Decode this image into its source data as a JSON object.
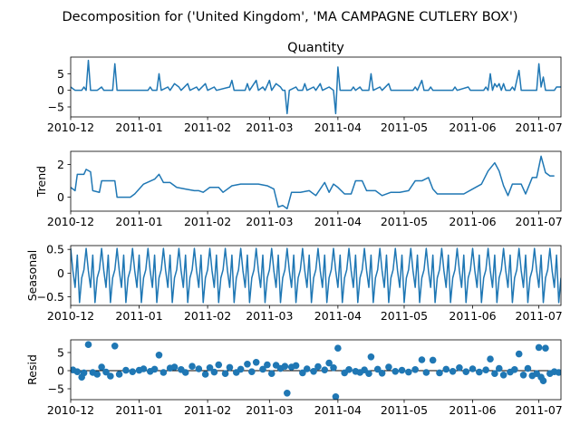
{
  "figure": {
    "suptitle": "Decomposition for ('United Kingdom', 'MA CAMPAGNE CUTLERY BOX')"
  },
  "colors": {
    "series": "#1f77b4",
    "zero_line": "#000000",
    "axes": "#000000"
  },
  "x_axis": {
    "start": "2010-12-01",
    "end": "2011-07-11",
    "ticks": [
      {
        "date": "2010-12-01",
        "label": "2010-12"
      },
      {
        "date": "2011-01-01",
        "label": "2011-01"
      },
      {
        "date": "2011-02-01",
        "label": "2011-02"
      },
      {
        "date": "2011-03-01",
        "label": "2011-03"
      },
      {
        "date": "2011-04-01",
        "label": "2011-04"
      },
      {
        "date": "2011-05-01",
        "label": "2011-05"
      },
      {
        "date": "2011-06-01",
        "label": "2011-06"
      },
      {
        "date": "2011-07-01",
        "label": "2011-07"
      }
    ]
  },
  "chart_data": [
    {
      "type": "line",
      "title": "Quantity",
      "ylabel": "",
      "ylim": [
        -8,
        10
      ],
      "yticks": [
        -5,
        0,
        5
      ],
      "points": [
        [
          "2010-12-01",
          1
        ],
        [
          "2010-12-03",
          0
        ],
        [
          "2010-12-06",
          0
        ],
        [
          "2010-12-07",
          1
        ],
        [
          "2010-12-08",
          0
        ],
        [
          "2010-12-09",
          9
        ],
        [
          "2010-12-10",
          0
        ],
        [
          "2010-12-13",
          0
        ],
        [
          "2010-12-15",
          1
        ],
        [
          "2010-12-16",
          0
        ],
        [
          "2010-12-20",
          0
        ],
        [
          "2010-12-21",
          8
        ],
        [
          "2010-12-22",
          0
        ],
        [
          "2011-01-05",
          0
        ],
        [
          "2011-01-06",
          1
        ],
        [
          "2011-01-07",
          0
        ],
        [
          "2011-01-09",
          0
        ],
        [
          "2011-01-10",
          5
        ],
        [
          "2011-01-11",
          0
        ],
        [
          "2011-01-14",
          1
        ],
        [
          "2011-01-15",
          0
        ],
        [
          "2011-01-17",
          2
        ],
        [
          "2011-01-19",
          1
        ],
        [
          "2011-01-20",
          0
        ],
        [
          "2011-01-23",
          2
        ],
        [
          "2011-01-24",
          0
        ],
        [
          "2011-01-27",
          1
        ],
        [
          "2011-01-28",
          0
        ],
        [
          "2011-01-31",
          2
        ],
        [
          "2011-02-01",
          0
        ],
        [
          "2011-02-04",
          1
        ],
        [
          "2011-02-05",
          0
        ],
        [
          "2011-02-11",
          1
        ],
        [
          "2011-02-12",
          3
        ],
        [
          "2011-02-13",
          0
        ],
        [
          "2011-02-18",
          0
        ],
        [
          "2011-02-19",
          2
        ],
        [
          "2011-02-20",
          0
        ],
        [
          "2011-02-23",
          3
        ],
        [
          "2011-02-24",
          0
        ],
        [
          "2011-02-26",
          1
        ],
        [
          "2011-02-27",
          0
        ],
        [
          "2011-03-01",
          3
        ],
        [
          "2011-03-02",
          0
        ],
        [
          "2011-03-04",
          2
        ],
        [
          "2011-03-06",
          1
        ],
        [
          "2011-03-07",
          0
        ],
        [
          "2011-03-08",
          0
        ],
        [
          "2011-03-09",
          -7
        ],
        [
          "2011-03-10",
          0
        ],
        [
          "2011-03-13",
          1
        ],
        [
          "2011-03-14",
          0
        ],
        [
          "2011-03-16",
          0
        ],
        [
          "2011-03-17",
          2
        ],
        [
          "2011-03-18",
          0
        ],
        [
          "2011-03-21",
          1
        ],
        [
          "2011-03-22",
          0
        ],
        [
          "2011-03-24",
          2
        ],
        [
          "2011-03-25",
          0
        ],
        [
          "2011-03-28",
          1
        ],
        [
          "2011-03-30",
          0
        ],
        [
          "2011-03-31",
          -7
        ],
        [
          "2011-04-01",
          7
        ],
        [
          "2011-04-02",
          0
        ],
        [
          "2011-04-07",
          0
        ],
        [
          "2011-04-08",
          1
        ],
        [
          "2011-04-09",
          0
        ],
        [
          "2011-04-11",
          1
        ],
        [
          "2011-04-12",
          0
        ],
        [
          "2011-04-15",
          0
        ],
        [
          "2011-04-16",
          5
        ],
        [
          "2011-04-17",
          0
        ],
        [
          "2011-04-20",
          1
        ],
        [
          "2011-04-21",
          0
        ],
        [
          "2011-04-24",
          2
        ],
        [
          "2011-04-25",
          0
        ],
        [
          "2011-05-05",
          0
        ],
        [
          "2011-05-06",
          1
        ],
        [
          "2011-05-07",
          0
        ],
        [
          "2011-05-09",
          3
        ],
        [
          "2011-05-10",
          0
        ],
        [
          "2011-05-12",
          0
        ],
        [
          "2011-05-13",
          1
        ],
        [
          "2011-05-14",
          0
        ],
        [
          "2011-05-23",
          0
        ],
        [
          "2011-05-24",
          1
        ],
        [
          "2011-05-25",
          0
        ],
        [
          "2011-05-30",
          1
        ],
        [
          "2011-05-31",
          0
        ],
        [
          "2011-06-06",
          0
        ],
        [
          "2011-06-07",
          1
        ],
        [
          "2011-06-08",
          0
        ],
        [
          "2011-06-09",
          5
        ],
        [
          "2011-06-10",
          0
        ],
        [
          "2011-06-11",
          2
        ],
        [
          "2011-06-12",
          1
        ],
        [
          "2011-06-13",
          2
        ],
        [
          "2011-06-14",
          0
        ],
        [
          "2011-06-15",
          2
        ],
        [
          "2011-06-16",
          0
        ],
        [
          "2011-06-18",
          0
        ],
        [
          "2011-06-19",
          1
        ],
        [
          "2011-06-20",
          0
        ],
        [
          "2011-06-22",
          6
        ],
        [
          "2011-06-23",
          0
        ],
        [
          "2011-06-30",
          0
        ],
        [
          "2011-07-01",
          8
        ],
        [
          "2011-07-02",
          1
        ],
        [
          "2011-07-03",
          4
        ],
        [
          "2011-07-04",
          0
        ],
        [
          "2011-07-08",
          0
        ],
        [
          "2011-07-09",
          1
        ],
        [
          "2011-07-11",
          1
        ]
      ]
    },
    {
      "type": "line",
      "title": "",
      "ylabel": "Trend",
      "ylim": [
        -0.85,
        2.8
      ],
      "yticks": [
        0,
        2
      ],
      "points": [
        [
          "2010-12-01",
          0.6
        ],
        [
          "2010-12-03",
          0.4
        ],
        [
          "2010-12-04",
          1.4
        ],
        [
          "2010-12-07",
          1.4
        ],
        [
          "2010-12-08",
          1.7
        ],
        [
          "2010-12-10",
          1.55
        ],
        [
          "2010-12-11",
          0.4
        ],
        [
          "2010-12-14",
          0.3
        ],
        [
          "2010-12-15",
          1.0
        ],
        [
          "2010-12-21",
          1.0
        ],
        [
          "2010-12-22",
          0.0
        ],
        [
          "2010-12-28",
          0.0
        ],
        [
          "2010-12-30",
          0.2
        ],
        [
          "2011-01-03",
          0.8
        ],
        [
          "2011-01-08",
          1.1
        ],
        [
          "2011-01-10",
          1.4
        ],
        [
          "2011-01-12",
          0.9
        ],
        [
          "2011-01-15",
          0.9
        ],
        [
          "2011-01-18",
          0.6
        ],
        [
          "2011-01-22",
          0.5
        ],
        [
          "2011-01-26",
          0.4
        ],
        [
          "2011-01-28",
          0.4
        ],
        [
          "2011-01-30",
          0.3
        ],
        [
          "2011-02-02",
          0.6
        ],
        [
          "2011-02-06",
          0.6
        ],
        [
          "2011-02-08",
          0.3
        ],
        [
          "2011-02-12",
          0.7
        ],
        [
          "2011-02-16",
          0.8
        ],
        [
          "2011-02-20",
          0.8
        ],
        [
          "2011-02-24",
          0.8
        ],
        [
          "2011-02-28",
          0.7
        ],
        [
          "2011-03-03",
          0.5
        ],
        [
          "2011-03-05",
          -0.6
        ],
        [
          "2011-03-07",
          -0.5
        ],
        [
          "2011-03-09",
          -0.7
        ],
        [
          "2011-03-11",
          0.3
        ],
        [
          "2011-03-15",
          0.3
        ],
        [
          "2011-03-19",
          0.4
        ],
        [
          "2011-03-22",
          0.1
        ],
        [
          "2011-03-26",
          0.9
        ],
        [
          "2011-03-28",
          0.3
        ],
        [
          "2011-03-30",
          0.8
        ],
        [
          "2011-04-01",
          0.6
        ],
        [
          "2011-04-04",
          0.2
        ],
        [
          "2011-04-07",
          0.2
        ],
        [
          "2011-04-09",
          1.0
        ],
        [
          "2011-04-12",
          1.0
        ],
        [
          "2011-04-14",
          0.4
        ],
        [
          "2011-04-18",
          0.4
        ],
        [
          "2011-04-21",
          0.1
        ],
        [
          "2011-04-25",
          0.3
        ],
        [
          "2011-04-29",
          0.3
        ],
        [
          "2011-05-03",
          0.4
        ],
        [
          "2011-05-06",
          1.0
        ],
        [
          "2011-05-09",
          1.0
        ],
        [
          "2011-05-12",
          1.2
        ],
        [
          "2011-05-14",
          0.5
        ],
        [
          "2011-05-16",
          0.2
        ],
        [
          "2011-05-20",
          0.2
        ],
        [
          "2011-05-24",
          0.2
        ],
        [
          "2011-05-28",
          0.2
        ],
        [
          "2011-06-01",
          0.5
        ],
        [
          "2011-06-05",
          0.8
        ],
        [
          "2011-06-08",
          1.6
        ],
        [
          "2011-06-11",
          2.1
        ],
        [
          "2011-06-13",
          1.6
        ],
        [
          "2011-06-15",
          0.7
        ],
        [
          "2011-06-17",
          0.1
        ],
        [
          "2011-06-19",
          0.8
        ],
        [
          "2011-06-23",
          0.8
        ],
        [
          "2011-06-25",
          0.2
        ],
        [
          "2011-06-28",
          1.2
        ],
        [
          "2011-06-30",
          1.2
        ],
        [
          "2011-07-02",
          2.5
        ],
        [
          "2011-07-04",
          1.5
        ],
        [
          "2011-07-06",
          1.3
        ],
        [
          "2011-07-08",
          1.3
        ]
      ]
    },
    {
      "type": "line",
      "title": "",
      "ylabel": "Seasonal",
      "ylim": [
        -0.68,
        0.58
      ],
      "yticks": [
        -0.5,
        0.0,
        0.5
      ],
      "period_days": 7,
      "weekly_pattern": [
        0.52,
        0.05,
        -0.3,
        0.38,
        -0.62,
        -0.1,
        0.07
      ]
    },
    {
      "type": "scatter",
      "title": "",
      "ylabel": "Resid",
      "ylim": [
        -8,
        8.5
      ],
      "yticks": [
        -5,
        0,
        5
      ],
      "zero_line": true,
      "points": [
        [
          "2010-12-02",
          0.2
        ],
        [
          "2010-12-04",
          -0.3
        ],
        [
          "2010-12-06",
          -1.8
        ],
        [
          "2010-12-07",
          -0.6
        ],
        [
          "2010-12-09",
          7.2
        ],
        [
          "2010-12-11",
          -0.5
        ],
        [
          "2010-12-13",
          -1.0
        ],
        [
          "2010-12-15",
          1.0
        ],
        [
          "2010-12-17",
          -0.4
        ],
        [
          "2010-12-19",
          -1.5
        ],
        [
          "2010-12-21",
          6.8
        ],
        [
          "2010-12-23",
          -1.0
        ],
        [
          "2010-12-26",
          0.1
        ],
        [
          "2010-12-29",
          -0.3
        ],
        [
          "2011-01-01",
          0.1
        ],
        [
          "2011-01-03",
          0.5
        ],
        [
          "2011-01-06",
          -0.2
        ],
        [
          "2011-01-08",
          0.4
        ],
        [
          "2011-01-10",
          4.3
        ],
        [
          "2011-01-12",
          -0.5
        ],
        [
          "2011-01-15",
          0.7
        ],
        [
          "2011-01-17",
          1.0
        ],
        [
          "2011-01-20",
          0.3
        ],
        [
          "2011-01-22",
          -0.5
        ],
        [
          "2011-01-25",
          1.2
        ],
        [
          "2011-01-28",
          0.5
        ],
        [
          "2011-01-31",
          -1.0
        ],
        [
          "2011-02-02",
          0.8
        ],
        [
          "2011-02-04",
          -0.4
        ],
        [
          "2011-02-06",
          1.6
        ],
        [
          "2011-02-09",
          -0.8
        ],
        [
          "2011-02-11",
          0.9
        ],
        [
          "2011-02-14",
          -0.5
        ],
        [
          "2011-02-16",
          0.4
        ],
        [
          "2011-02-19",
          1.8
        ],
        [
          "2011-02-21",
          -0.3
        ],
        [
          "2011-02-23",
          2.3
        ],
        [
          "2011-02-26",
          0.4
        ],
        [
          "2011-02-28",
          1.6
        ],
        [
          "2011-03-02",
          -0.8
        ],
        [
          "2011-03-04",
          1.5
        ],
        [
          "2011-03-06",
          0.6
        ],
        [
          "2011-03-08",
          1.2
        ],
        [
          "2011-03-09",
          -6.2
        ],
        [
          "2011-03-11",
          1.0
        ],
        [
          "2011-03-13",
          1.4
        ],
        [
          "2011-03-16",
          -0.6
        ],
        [
          "2011-03-18",
          0.5
        ],
        [
          "2011-03-21",
          -0.2
        ],
        [
          "2011-03-23",
          1.1
        ],
        [
          "2011-03-26",
          0.2
        ],
        [
          "2011-03-28",
          2.1
        ],
        [
          "2011-03-30",
          0.8
        ],
        [
          "2011-03-31",
          -7.2
        ],
        [
          "2011-04-01",
          6.2
        ],
        [
          "2011-04-04",
          -0.6
        ],
        [
          "2011-04-06",
          0.3
        ],
        [
          "2011-04-09",
          -0.2
        ],
        [
          "2011-04-11",
          -0.5
        ],
        [
          "2011-04-13",
          0.2
        ],
        [
          "2011-04-15",
          -0.8
        ],
        [
          "2011-04-16",
          3.8
        ],
        [
          "2011-04-19",
          0.4
        ],
        [
          "2011-04-21",
          -0.7
        ],
        [
          "2011-04-24",
          1.0
        ],
        [
          "2011-04-27",
          -0.2
        ],
        [
          "2011-04-30",
          0.1
        ],
        [
          "2011-05-03",
          -0.4
        ],
        [
          "2011-05-06",
          0.3
        ],
        [
          "2011-05-09",
          3.0
        ],
        [
          "2011-05-11",
          -0.5
        ],
        [
          "2011-05-14",
          2.9
        ],
        [
          "2011-05-17",
          -0.6
        ],
        [
          "2011-05-20",
          0.4
        ],
        [
          "2011-05-23",
          -0.2
        ],
        [
          "2011-05-26",
          0.8
        ],
        [
          "2011-05-29",
          -0.3
        ],
        [
          "2011-06-01",
          0.5
        ],
        [
          "2011-06-04",
          -0.4
        ],
        [
          "2011-06-07",
          0.2
        ],
        [
          "2011-06-09",
          3.2
        ],
        [
          "2011-06-11",
          -0.8
        ],
        [
          "2011-06-13",
          0.6
        ],
        [
          "2011-06-15",
          -1.2
        ],
        [
          "2011-06-18",
          -0.4
        ],
        [
          "2011-06-20",
          0.3
        ],
        [
          "2011-06-22",
          4.6
        ],
        [
          "2011-06-24",
          -1.2
        ],
        [
          "2011-06-26",
          0.6
        ],
        [
          "2011-06-28",
          -1.4
        ],
        [
          "2011-06-30",
          -0.8
        ],
        [
          "2011-07-01",
          6.4
        ],
        [
          "2011-07-02",
          -1.8
        ],
        [
          "2011-07-03",
          -2.8
        ],
        [
          "2011-07-04",
          6.2
        ],
        [
          "2011-07-06",
          -0.8
        ],
        [
          "2011-07-08",
          -0.3
        ],
        [
          "2011-07-10",
          -0.5
        ]
      ]
    }
  ]
}
